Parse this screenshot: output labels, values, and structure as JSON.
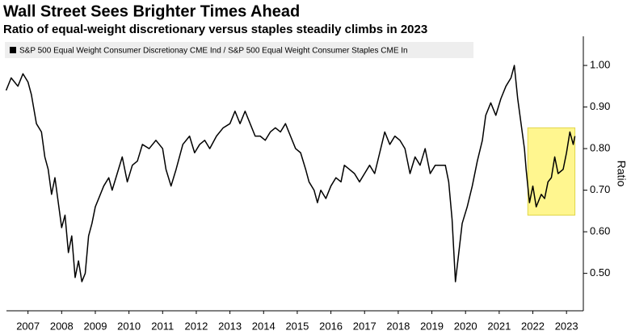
{
  "chart_data": {
    "type": "line",
    "title": "Wall Street Sees Brighter Times Ahead",
    "subtitle": "Ratio of equal-weight discretionary versus staples steadily climbs in 2023",
    "y_label": "Ratio",
    "x": [
      2006.85,
      2007.0,
      2007.2,
      2007.35,
      2007.5,
      2007.6,
      2007.75,
      2007.9,
      2008.0,
      2008.1,
      2008.2,
      2008.3,
      2008.4,
      2008.5,
      2008.6,
      2008.7,
      2008.8,
      2008.9,
      2009.0,
      2009.1,
      2009.2,
      2009.3,
      2009.4,
      2009.5,
      2009.6,
      2009.75,
      2009.9,
      2010.0,
      2010.15,
      2010.3,
      2010.45,
      2010.6,
      2010.75,
      2010.9,
      2011.1,
      2011.3,
      2011.5,
      2011.6,
      2011.75,
      2011.9,
      2012.1,
      2012.3,
      2012.45,
      2012.6,
      2012.75,
      2012.9,
      2013.1,
      2013.3,
      2013.5,
      2013.65,
      2013.8,
      2013.95,
      2014.1,
      2014.25,
      2014.4,
      2014.55,
      2014.7,
      2014.85,
      2015.0,
      2015.15,
      2015.3,
      2015.45,
      2015.6,
      2015.75,
      2015.85,
      2016.0,
      2016.1,
      2016.2,
      2016.35,
      2016.5,
      2016.65,
      2016.8,
      2016.9,
      2017.05,
      2017.2,
      2017.35,
      2017.5,
      2017.65,
      2017.8,
      2017.95,
      2018.1,
      2018.25,
      2018.4,
      2018.55,
      2018.7,
      2018.85,
      2019.0,
      2019.15,
      2019.3,
      2019.45,
      2019.6,
      2019.75,
      2019.9,
      2020.0,
      2020.1,
      2020.2,
      2020.3,
      2020.4,
      2020.55,
      2020.7,
      2020.85,
      2021.0,
      2021.1,
      2021.25,
      2021.4,
      2021.55,
      2021.7,
      2021.85,
      2021.95,
      2022.05,
      2022.15,
      2022.25,
      2022.3,
      2022.4,
      2022.5,
      2022.6,
      2022.75,
      2022.85,
      2022.95,
      2023.05,
      2023.15,
      2023.25,
      2023.4,
      2023.5,
      2023.6,
      2023.7,
      2023.75
    ],
    "series": [
      {
        "name": "S&P 500 Equal Weight Consumer Discretionay CME Ind / S&P 500 Equal Weight Consumer Staples CME In",
        "color": "#000000",
        "values": [
          0.94,
          0.97,
          0.95,
          0.98,
          0.96,
          0.93,
          0.86,
          0.84,
          0.78,
          0.75,
          0.69,
          0.73,
          0.67,
          0.61,
          0.64,
          0.55,
          0.59,
          0.49,
          0.53,
          0.48,
          0.5,
          0.59,
          0.62,
          0.66,
          0.68,
          0.71,
          0.73,
          0.7,
          0.74,
          0.78,
          0.72,
          0.76,
          0.77,
          0.81,
          0.8,
          0.82,
          0.8,
          0.75,
          0.71,
          0.75,
          0.81,
          0.83,
          0.79,
          0.81,
          0.82,
          0.8,
          0.83,
          0.85,
          0.86,
          0.89,
          0.86,
          0.89,
          0.86,
          0.83,
          0.83,
          0.82,
          0.84,
          0.85,
          0.84,
          0.86,
          0.83,
          0.8,
          0.79,
          0.75,
          0.72,
          0.7,
          0.67,
          0.7,
          0.68,
          0.71,
          0.73,
          0.72,
          0.76,
          0.75,
          0.74,
          0.72,
          0.74,
          0.76,
          0.74,
          0.79,
          0.84,
          0.81,
          0.83,
          0.82,
          0.8,
          0.74,
          0.78,
          0.76,
          0.8,
          0.74,
          0.76,
          0.76,
          0.76,
          0.72,
          0.63,
          0.48,
          0.55,
          0.62,
          0.66,
          0.71,
          0.77,
          0.82,
          0.88,
          0.91,
          0.88,
          0.92,
          0.95,
          0.97,
          1.0,
          0.92,
          0.86,
          0.8,
          0.75,
          0.67,
          0.71,
          0.66,
          0.69,
          0.68,
          0.72,
          0.73,
          0.78,
          0.74,
          0.75,
          0.79,
          0.84,
          0.81,
          0.83
        ]
      }
    ],
    "xlim": [
      2006.86,
      2024.0
    ],
    "xticks": [
      {
        "value": 2007.5,
        "label": "2007"
      },
      {
        "value": 2008.5,
        "label": "2008"
      },
      {
        "value": 2009.5,
        "label": "2009"
      },
      {
        "value": 2010.5,
        "label": "2010"
      },
      {
        "value": 2011.5,
        "label": "2011"
      },
      {
        "value": 2012.5,
        "label": "2012"
      },
      {
        "value": 2013.5,
        "label": "2013"
      },
      {
        "value": 2014.5,
        "label": "2014"
      },
      {
        "value": 2015.5,
        "label": "2015"
      },
      {
        "value": 2016.5,
        "label": "2016"
      },
      {
        "value": 2017.5,
        "label": "2017"
      },
      {
        "value": 2018.5,
        "label": "2018"
      },
      {
        "value": 2019.5,
        "label": "2019"
      },
      {
        "value": 2020.5,
        "label": "2020"
      },
      {
        "value": 2021.5,
        "label": "2021"
      },
      {
        "value": 2022.5,
        "label": "2022"
      },
      {
        "value": 2023.5,
        "label": "2023"
      }
    ],
    "ylim": [
      0.41,
      1.07
    ],
    "yticks": [
      {
        "value": 0.5,
        "label": "0.50"
      },
      {
        "value": 0.6,
        "label": "0.60"
      },
      {
        "value": 0.7,
        "label": "0.70"
      },
      {
        "value": 0.8,
        "label": "0.80"
      },
      {
        "value": 0.9,
        "label": "0.90"
      },
      {
        "value": 1.0,
        "label": "1.00"
      }
    ],
    "highlight": {
      "x": [
        2022.35,
        2023.75
      ],
      "y": [
        0.64,
        0.85
      ],
      "color": "#fff68f"
    }
  }
}
